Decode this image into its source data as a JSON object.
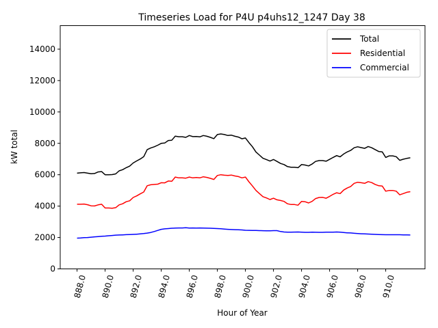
{
  "chart_data": {
    "type": "line",
    "title": "Timeseries Load for P4U p4uhs12_1247  Day 38",
    "xlabel": "Hour of Year",
    "ylabel": "kW total",
    "xlim": [
      886.8,
      912.8
    ],
    "ylim": [
      0,
      15500
    ],
    "xticks": [
      888,
      890,
      892,
      894,
      896,
      898,
      900,
      902,
      904,
      906,
      908,
      910
    ],
    "xtick_labels": [
      "888.0",
      "890.0",
      "892.0",
      "894.0",
      "896.0",
      "898.0",
      "900.0",
      "902.0",
      "904.0",
      "906.0",
      "908.0",
      "910.0"
    ],
    "yticks": [
      0,
      2000,
      4000,
      6000,
      8000,
      10000,
      12000,
      14000
    ],
    "ytick_labels": [
      "0",
      "2000",
      "4000",
      "6000",
      "8000",
      "10000",
      "12000",
      "14000"
    ],
    "legend_position": "top-right",
    "x": [
      888,
      888.25,
      888.5,
      888.75,
      889,
      889.25,
      889.5,
      889.75,
      890,
      890.25,
      890.5,
      890.75,
      891,
      891.25,
      891.5,
      891.75,
      892,
      892.25,
      892.5,
      892.75,
      893,
      893.25,
      893.5,
      893.75,
      894,
      894.25,
      894.5,
      894.75,
      895,
      895.25,
      895.5,
      895.75,
      896,
      896.25,
      896.5,
      896.75,
      897,
      897.25,
      897.5,
      897.75,
      898,
      898.25,
      898.5,
      898.75,
      899,
      899.25,
      899.5,
      899.75,
      900,
      900.25,
      900.5,
      900.75,
      901,
      901.25,
      901.5,
      901.75,
      902,
      902.25,
      902.5,
      902.75,
      903,
      903.25,
      903.5,
      903.75,
      904,
      904.25,
      904.5,
      904.75,
      905,
      905.25,
      905.5,
      905.75,
      906,
      906.25,
      906.5,
      906.75,
      907,
      907.25,
      907.5,
      907.75,
      908,
      908.25,
      908.5,
      908.75,
      909,
      909.25,
      909.5,
      909.75,
      910,
      910.25,
      910.5,
      910.75,
      911,
      911.25,
      911.5,
      911.75
    ],
    "series": [
      {
        "name": "Total",
        "color": "#000000",
        "values": [
          6100,
          6120,
          6140,
          6100,
          6060,
          6080,
          6180,
          6200,
          6000,
          6000,
          6010,
          6050,
          6250,
          6320,
          6450,
          6550,
          6750,
          6880,
          7000,
          7150,
          7600,
          7700,
          7780,
          7880,
          8000,
          8020,
          8180,
          8200,
          8460,
          8420,
          8420,
          8380,
          8500,
          8430,
          8440,
          8410,
          8500,
          8450,
          8380,
          8300,
          8560,
          8600,
          8560,
          8500,
          8520,
          8450,
          8400,
          8290,
          8340,
          8050,
          7780,
          7450,
          7250,
          7050,
          6960,
          6870,
          6970,
          6850,
          6720,
          6650,
          6520,
          6480,
          6480,
          6450,
          6650,
          6620,
          6560,
          6680,
          6850,
          6900,
          6900,
          6860,
          6980,
          7100,
          7220,
          7140,
          7320,
          7450,
          7550,
          7720,
          7780,
          7730,
          7680,
          7800,
          7720,
          7600,
          7480,
          7460,
          7100,
          7200,
          7200,
          7150,
          6920,
          6990,
          7040,
          7080
        ]
      },
      {
        "name": "Residential",
        "color": "#ff0000",
        "values": [
          4120,
          4120,
          4130,
          4090,
          4020,
          4010,
          4080,
          4120,
          3880,
          3880,
          3860,
          3900,
          4080,
          4150,
          4280,
          4340,
          4550,
          4650,
          4780,
          4900,
          5300,
          5360,
          5380,
          5400,
          5490,
          5480,
          5600,
          5580,
          5850,
          5800,
          5800,
          5780,
          5850,
          5800,
          5820,
          5800,
          5870,
          5830,
          5770,
          5700,
          5950,
          6000,
          5970,
          5950,
          5980,
          5920,
          5880,
          5800,
          5850,
          5550,
          5280,
          5000,
          4800,
          4600,
          4520,
          4420,
          4500,
          4400,
          4360,
          4300,
          4150,
          4100,
          4100,
          4060,
          4300,
          4280,
          4200,
          4300,
          4480,
          4550,
          4560,
          4500,
          4620,
          4750,
          4850,
          4800,
          5020,
          5150,
          5250,
          5450,
          5520,
          5490,
          5450,
          5560,
          5500,
          5380,
          5300,
          5280,
          4950,
          5000,
          5000,
          4950,
          4720,
          4800,
          4880,
          4920
        ]
      },
      {
        "name": "Commercial",
        "color": "#0000ff",
        "values": [
          1960,
          1970,
          1990,
          2000,
          2020,
          2040,
          2060,
          2080,
          2090,
          2110,
          2130,
          2150,
          2160,
          2170,
          2180,
          2190,
          2200,
          2210,
          2230,
          2250,
          2280,
          2320,
          2380,
          2450,
          2520,
          2550,
          2570,
          2590,
          2600,
          2610,
          2610,
          2620,
          2600,
          2610,
          2605,
          2610,
          2600,
          2595,
          2590,
          2580,
          2570,
          2560,
          2540,
          2520,
          2510,
          2500,
          2490,
          2480,
          2460,
          2455,
          2450,
          2445,
          2440,
          2435,
          2430,
          2430,
          2440,
          2440,
          2380,
          2350,
          2340,
          2340,
          2345,
          2350,
          2340,
          2330,
          2330,
          2340,
          2335,
          2330,
          2330,
          2340,
          2340,
          2340,
          2350,
          2340,
          2320,
          2300,
          2290,
          2270,
          2250,
          2240,
          2230,
          2220,
          2210,
          2200,
          2190,
          2180,
          2175,
          2175,
          2175,
          2175,
          2175,
          2170,
          2165,
          2160
        ]
      }
    ]
  }
}
